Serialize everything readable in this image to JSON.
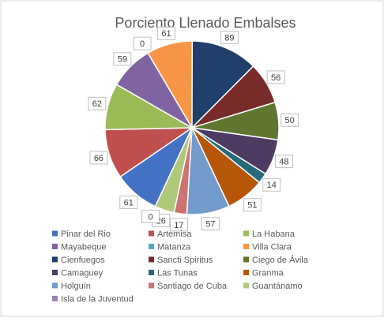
{
  "chart_data": {
    "type": "pie",
    "title": "Porciento Llenado Embalses",
    "categories": [
      "Pinar del Rio",
      "Artemisa",
      "La Habana",
      "Mayabeque",
      "Matanza",
      "Villa Clara",
      "Cienfuegos",
      "Sancti Spiritus",
      "Ciego de Ávila",
      "Camaguey",
      "Las Tunas",
      "Granma",
      "Holguín",
      "Santiago de Cuba",
      "Guantánamo",
      "Isla de la Juventud"
    ],
    "values": [
      61,
      66,
      62,
      59,
      0,
      61,
      89,
      56,
      50,
      48,
      14,
      51,
      57,
      17,
      26,
      0
    ],
    "colors": [
      "#4472c4",
      "#c0504d",
      "#9bbb59",
      "#8064a2",
      "#4bacc6",
      "#f79646",
      "#203f6b",
      "#772c2a",
      "#5f7530",
      "#4d3b62",
      "#276a7c",
      "#b65708",
      "#729aca",
      "#cd7371",
      "#afc97a",
      "#9983b5"
    ],
    "legend": "bottom"
  }
}
